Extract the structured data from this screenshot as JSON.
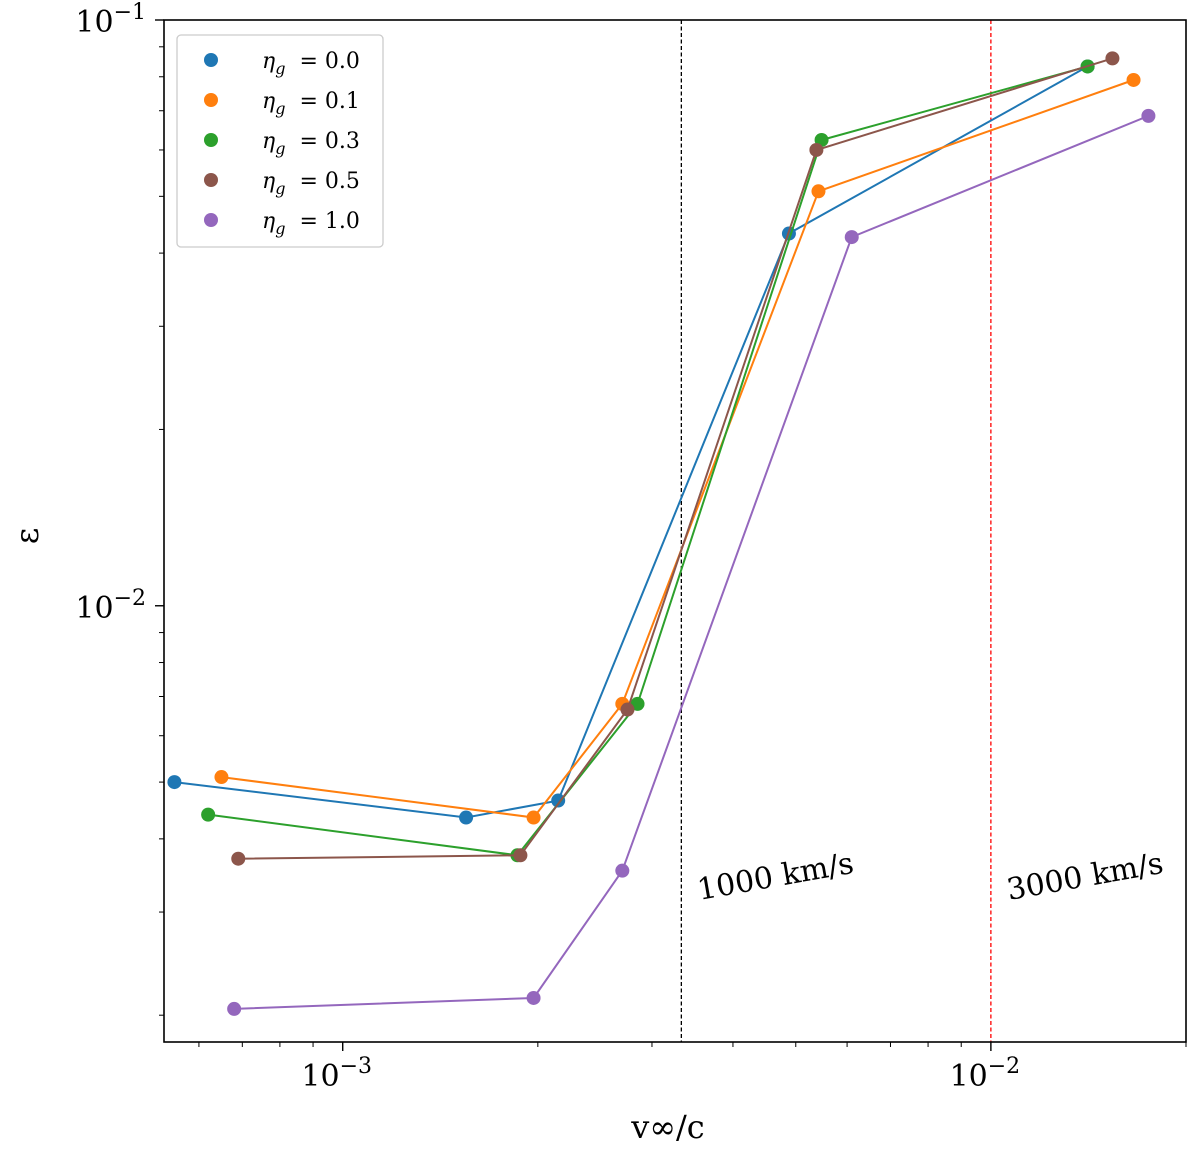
{
  "chart_data": {
    "type": "line",
    "xscale": "log",
    "yscale": "log",
    "xlabel": "v∞/c",
    "ylabel": "ε",
    "xlim": [
      0.00053,
      0.02
    ],
    "ylim": [
      0.0018,
      0.1
    ],
    "x_ticks": [
      {
        "value": 0.001,
        "label": "10",
        "exp": "−3"
      },
      {
        "value": 0.01,
        "label": "10",
        "exp": "−2"
      }
    ],
    "y_ticks": [
      {
        "value": 0.01,
        "label": "10",
        "exp": "−2"
      },
      {
        "value": 0.1,
        "label": "10",
        "exp": "−1"
      }
    ],
    "series": [
      {
        "name": "η_g = 0.0",
        "legend_symbol": "η",
        "legend_sub": "g",
        "legend_value": "= 0.0",
        "color": "#1f77b4",
        "x": [
          0.00055,
          0.00155,
          0.00215,
          0.00488,
          0.0141
        ],
        "y": [
          0.005,
          0.00435,
          0.00465,
          0.0432,
          0.0833
        ]
      },
      {
        "name": "η_g = 0.1",
        "legend_symbol": "η",
        "legend_sub": "g",
        "legend_value": "= 0.1",
        "color": "#ff7f0e",
        "x": [
          0.00065,
          0.00197,
          0.0027,
          0.00542,
          0.0166
        ],
        "y": [
          0.0051,
          0.00435,
          0.0068,
          0.051,
          0.079
        ]
      },
      {
        "name": "η_g = 0.3",
        "legend_symbol": "η",
        "legend_sub": "g",
        "legend_value": "= 0.3",
        "color": "#2ca02c",
        "x": [
          0.00062,
          0.00186,
          0.00285,
          0.00548,
          0.0141
        ],
        "y": [
          0.0044,
          0.00375,
          0.0068,
          0.0624,
          0.0833
        ]
      },
      {
        "name": "η_g = 0.5",
        "legend_symbol": "η",
        "legend_sub": "g",
        "legend_value": "= 0.5",
        "color": "#8c564b",
        "x": [
          0.00069,
          0.00188,
          0.00275,
          0.00538,
          0.0154
        ],
        "y": [
          0.0037,
          0.00375,
          0.00665,
          0.06,
          0.086
        ]
      },
      {
        "name": "η_g = 1.0",
        "legend_symbol": "η",
        "legend_sub": "g",
        "legend_value": "= 1.0",
        "color": "#9467bd",
        "x": [
          0.00068,
          0.00197,
          0.0027,
          0.0061,
          0.0175
        ],
        "y": [
          0.00205,
          0.00214,
          0.00353,
          0.0426,
          0.0686
        ]
      }
    ],
    "vlines": [
      {
        "x": 0.00333,
        "color": "#000000",
        "label": "1000 km/s",
        "label_color": "#000000"
      },
      {
        "x": 0.01,
        "color": "#ff0000",
        "label": "3000 km/s",
        "label_color": "#ff0000"
      }
    ],
    "legend_location": "upper-left"
  }
}
